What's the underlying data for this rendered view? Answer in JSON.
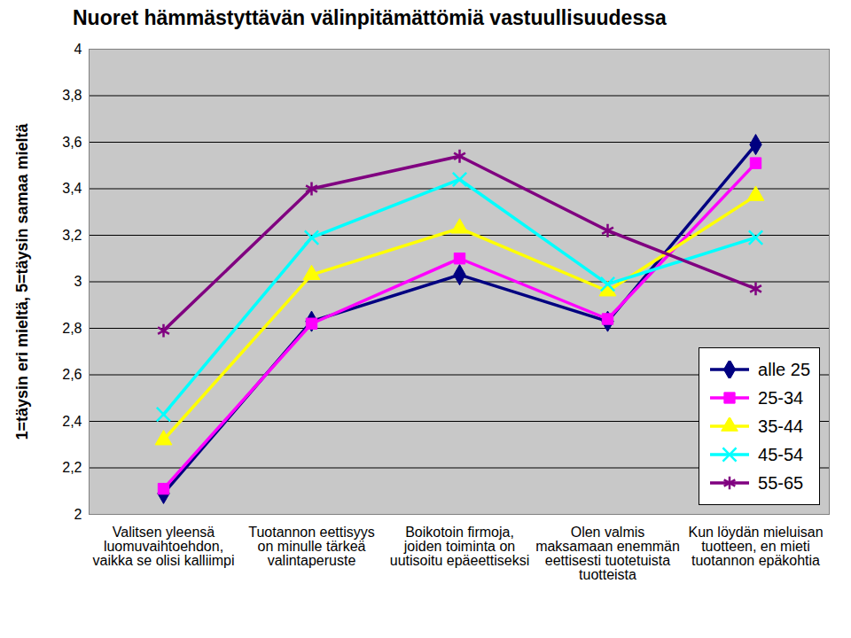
{
  "chart_data": {
    "type": "line",
    "title": "Nuoret hämmästyttävän välinpitämättömiä vastuullisuudessa",
    "y_label": "1=täysin eri mieltä, 5=täysin samaa mieltä",
    "categories": [
      "Valitsen yleensä luomuvaihtoehdon, vaikka se olisi kalliimpi",
      "Tuotannon eettisyys on minulle tärkeä valintaperuste",
      "Boikotoin firmoja, joiden toiminta on uutisoitu epäeettiseksi",
      "Olen valmis maksamaan enemmän eettisesti tuotetuista tuotteista",
      "Kun löydän mieluisan tuotteen, en mieti tuotannon epäkohtia"
    ],
    "series": [
      {
        "name": "alle 25",
        "color": "#000080",
        "marker": "diamond",
        "values": [
          2.09,
          2.83,
          3.03,
          2.83,
          3.59
        ]
      },
      {
        "name": "25-34",
        "color": "#ff00ff",
        "marker": "square",
        "values": [
          2.11,
          2.82,
          3.1,
          2.84,
          3.51
        ]
      },
      {
        "name": "35-44",
        "color": "#ffff00",
        "marker": "triangle",
        "values": [
          2.32,
          3.03,
          3.23,
          2.96,
          3.37
        ]
      },
      {
        "name": "45-54",
        "color": "#00ffff",
        "marker": "x",
        "values": [
          2.43,
          3.19,
          3.44,
          2.99,
          3.19
        ]
      },
      {
        "name": "55-65",
        "color": "#800080",
        "marker": "asterisk",
        "values": [
          2.79,
          3.4,
          3.54,
          3.22,
          2.97
        ]
      }
    ],
    "ylim": [
      2,
      4
    ],
    "yticks": [
      2,
      {
        "value": 2.2,
        "label": "2,2"
      },
      {
        "value": 2.4,
        "label": "2,4"
      },
      {
        "value": 2.6,
        "label": "2,6"
      },
      {
        "value": 2.8,
        "label": "2,8"
      },
      3,
      {
        "value": 3.2,
        "label": "3,2"
      },
      {
        "value": 3.4,
        "label": "3,4"
      },
      {
        "value": 3.6,
        "label": "3,6"
      },
      {
        "value": 3.8,
        "label": "3,8"
      },
      4
    ],
    "grid": true,
    "legend": "lower right"
  }
}
